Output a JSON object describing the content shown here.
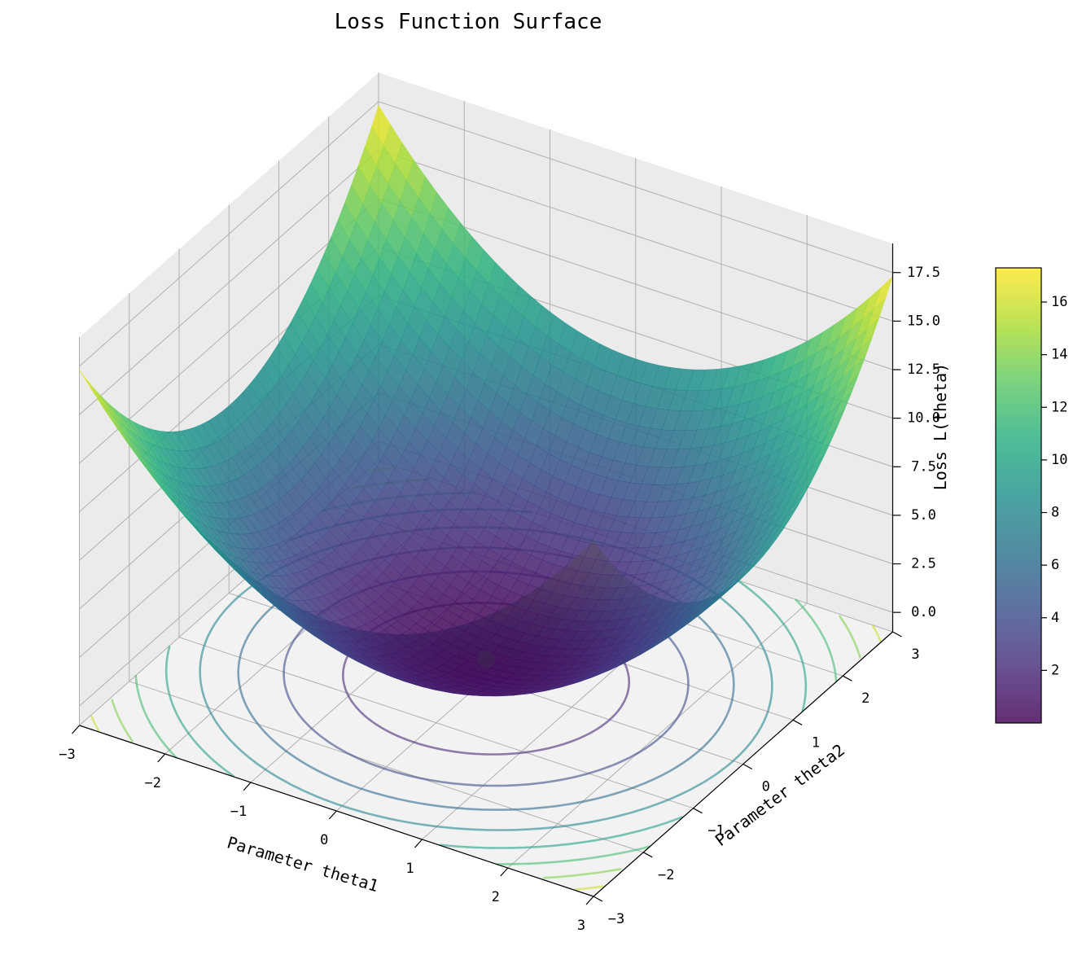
{
  "chart_data": {
    "type": "surface3d",
    "title": "Loss Function Surface",
    "xlabel": "Parameter theta1",
    "ylabel": "Parameter theta2",
    "zlabel": "Loss L(theta)",
    "xlim": [
      -3,
      3
    ],
    "ylim": [
      -3,
      3
    ],
    "zlim": [
      -1,
      19
    ],
    "x_ticks": [
      "−3",
      "−2",
      "−1",
      "0",
      "1",
      "2",
      "3"
    ],
    "y_ticks": [
      "−3",
      "−2",
      "−1",
      "0",
      "1",
      "2",
      "3"
    ],
    "z_ticks": [
      "0.0",
      "2.5",
      "5.0",
      "7.5",
      "10.0",
      "12.5",
      "15.0",
      "17.5"
    ],
    "colorbar_ticks": [
      "2",
      "4",
      "6",
      "8",
      "10",
      "12",
      "14",
      "16"
    ],
    "colorbar_range": [
      0,
      17.3
    ],
    "colormap": "viridis",
    "contour_levels": [
      2,
      4,
      6,
      8,
      10,
      12,
      14,
      16
    ],
    "minimum_point": {
      "theta1": 0,
      "theta2": 0,
      "loss": 0
    },
    "grid": true
  }
}
